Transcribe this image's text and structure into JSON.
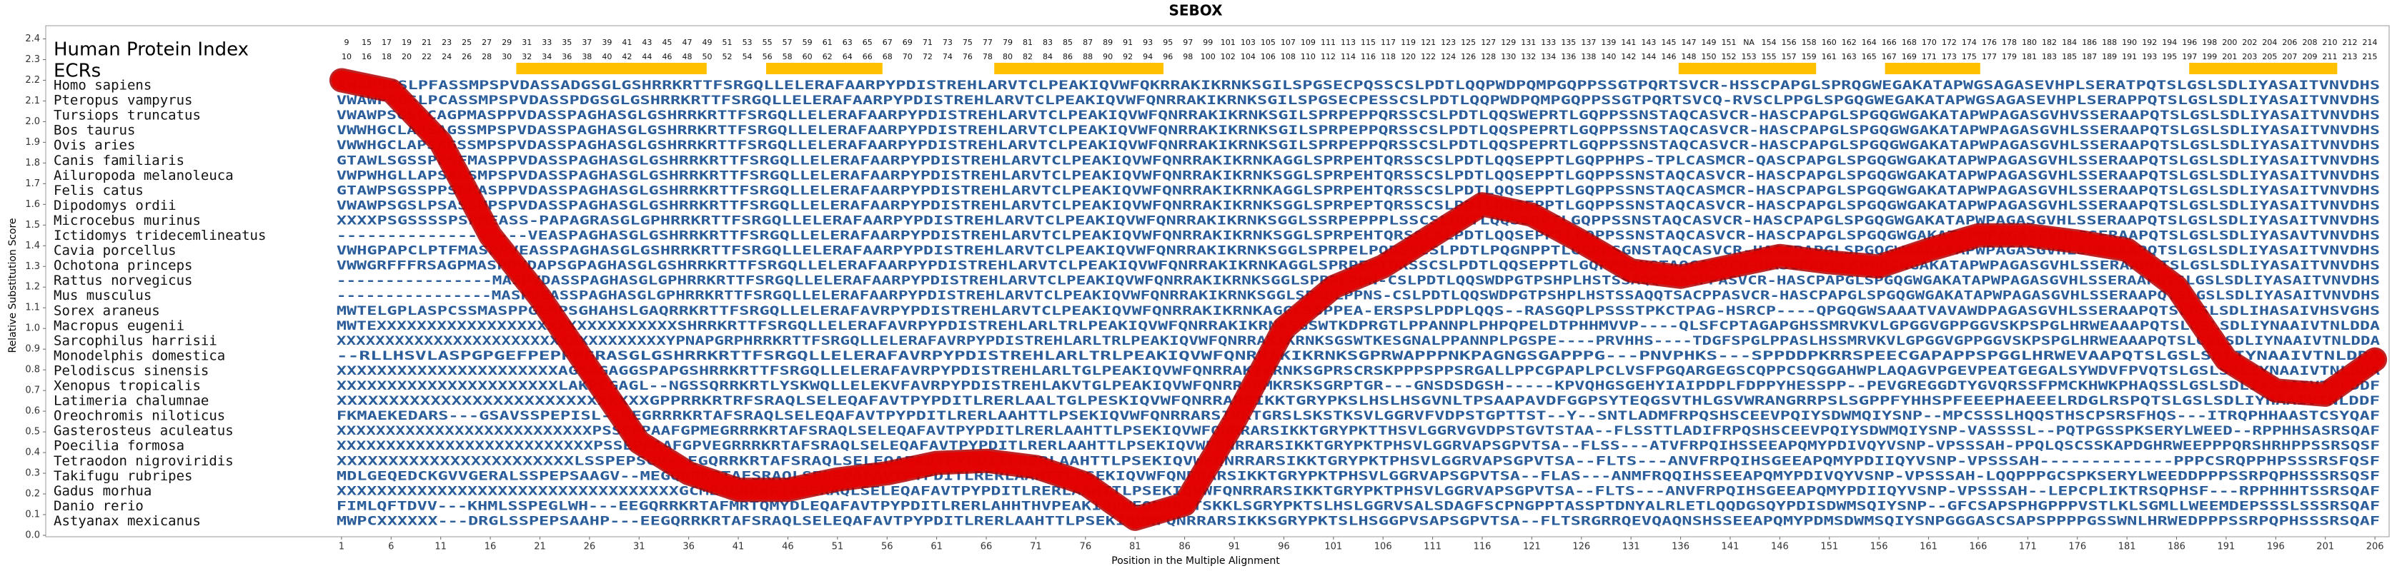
{
  "chart_data": {
    "type": "line",
    "title": "SEBOX",
    "xlabel": "Position in the Multiple Alignment",
    "ylabel": "Relative Substitution Score",
    "index_title": "Human Protein Index",
    "ecr_label": "ECRs",
    "color": "#e60000",
    "x": [
      1,
      6,
      11,
      16,
      21,
      26,
      31,
      36,
      41,
      46,
      51,
      56,
      61,
      66,
      71,
      76,
      81,
      86,
      91,
      96,
      101,
      106,
      111,
      116,
      121,
      126,
      131,
      136,
      141,
      146,
      151,
      156,
      161,
      166,
      171,
      176,
      181,
      186,
      191,
      196,
      201,
      206
    ],
    "values": [
      2.2,
      2.15,
      1.9,
      1.45,
      1.15,
      0.8,
      0.45,
      0.3,
      0.22,
      0.22,
      0.27,
      0.3,
      0.35,
      0.36,
      0.33,
      0.25,
      0.08,
      0.15,
      0.55,
      1.0,
      1.2,
      1.3,
      1.45,
      1.6,
      1.55,
      1.42,
      1.28,
      1.25,
      1.3,
      1.35,
      1.32,
      1.3,
      1.38,
      1.45,
      1.45,
      1.42,
      1.38,
      1.2,
      0.85,
      0.7,
      0.68,
      0.85
    ],
    "xlim": [
      0,
      207
    ],
    "ylim": [
      0,
      2.45
    ],
    "xticks": [
      1,
      6,
      11,
      16,
      21,
      26,
      31,
      36,
      41,
      46,
      51,
      56,
      61,
      66,
      71,
      76,
      81,
      86,
      91,
      96,
      101,
      106,
      111,
      116,
      121,
      126,
      131,
      136,
      141,
      146,
      151,
      156,
      161,
      166,
      171,
      176,
      181,
      186,
      191,
      196,
      201,
      206
    ],
    "yticks": [
      {
        "value": 0,
        "label": "0.0"
      },
      0.1,
      0.2,
      0.3,
      0.4,
      0.5,
      0.6,
      0.7,
      0.8,
      0.9,
      {
        "value": 1,
        "label": "1.0"
      },
      1.1,
      1.2,
      1.3,
      1.4,
      1.5,
      1.6,
      1.7,
      1.8,
      1.9,
      {
        "value": 2,
        "label": "2.0"
      },
      2.1,
      2.2,
      2.3,
      2.4
    ],
    "human_index_top": [
      9,
      15,
      17,
      19,
      21,
      23,
      25,
      27,
      29,
      31,
      33,
      35,
      37,
      39,
      41,
      43,
      45,
      47,
      49,
      51,
      53,
      55,
      57,
      59,
      61,
      63,
      65,
      67,
      69,
      71,
      73,
      75,
      77,
      79,
      81,
      83,
      85,
      87,
      89,
      91,
      93,
      95,
      97,
      99,
      101,
      103,
      105,
      107,
      109,
      111,
      113,
      115,
      117,
      119,
      121,
      123,
      125,
      127,
      129,
      131,
      133,
      135,
      137,
      139,
      141,
      143,
      145,
      147,
      149,
      151,
      "NA",
      154,
      156,
      158,
      160,
      162,
      164,
      166,
      168,
      170,
      172,
      174,
      176,
      178,
      180,
      182,
      184,
      186,
      188,
      190,
      192,
      194,
      196,
      198,
      200,
      202,
      204,
      206,
      208,
      210,
      212,
      214
    ],
    "human_index_bottom": [
      10,
      16,
      18,
      20,
      22,
      24,
      26,
      28,
      30,
      32,
      34,
      36,
      38,
      40,
      42,
      44,
      46,
      48,
      50,
      52,
      54,
      56,
      58,
      60,
      62,
      64,
      66,
      68,
      70,
      72,
      74,
      76,
      78,
      80,
      82,
      84,
      86,
      88,
      90,
      92,
      94,
      96,
      98,
      100,
      102,
      104,
      106,
      108,
      110,
      112,
      114,
      116,
      118,
      120,
      122,
      124,
      126,
      128,
      130,
      132,
      134,
      136,
      138,
      140,
      142,
      144,
      146,
      148,
      150,
      152,
      153,
      155,
      157,
      159,
      161,
      163,
      165,
      167,
      169,
      171,
      173,
      175,
      177,
      179,
      181,
      183,
      185,
      187,
      189,
      191,
      193,
      195,
      197,
      199,
      201,
      203,
      205,
      207,
      209,
      211,
      213,
      215
    ],
    "species": [
      "Homo sapiens",
      "Pteropus vampyrus",
      "Tursiops truncatus",
      "Bos taurus",
      "Ovis aries",
      "Canis familiaris",
      "Ailuropoda melanoleuca",
      "Felis catus",
      "Dipodomys ordii",
      "Microcebus murinus",
      "Ictidomys tridecemlineatus",
      "Cavia porcellus",
      "Ochotona princeps",
      "Rattus norvegicus",
      "Mus musculus",
      "Sorex araneus",
      "Macropus eugenii",
      "Sarcophilus harrisii",
      "Monodelphis domestica",
      "Pelodiscus sinensis",
      "Xenopus tropicalis",
      "Latimeria chalumnae",
      "Oreochromis niloticus",
      "Gasterosteus aculeatus",
      "Poecilia formosa",
      "Tetraodon nigroviridis",
      "Takifugu rubripes",
      "Gadus morhua",
      "Danio rerio",
      "Astyanax mexicanus"
    ],
    "sequences": [
      "AWAPSGSLPFASSMPSPVDASSADGSGLGSHRRKRTTFSRGQLLELERAFAARPYPDISTREHLARVTCLPEAKIQVWFQKRRAKIKRNKSGILSPGSECPQSSCSLPDTLQQPWDPQMPGQPPSSGTPQRTSVCR-HSSCPAPGLSPRQGWEGAKATAPWGSAGASEVHPLSERATPQTSLGSLSDLIYASAITVNVDHS",
      "VWAWPSGSLPCASSMPSPVDASSPDGSGLGSHRRKRTTFSRGQLLELERAFAARPYPDISTREHLARVTCLPEAKIQVWFQNRRAKIKRNKSGILSPGSECPESSCSLPDTLQQPWDPQMPGQPPSSGTPQRTSVCQ-RVSCLPPGLSPGQGWEGAKATAPWGSAGASEVHPLSERAPPQTSLGSLSDLIYASAITVNVDHS",
      "VWAWPSGSCCAGPMASPPVDASSPAGHASGLGSHRRKRTTFSRGQLLELERAFAARPYPDISTREHLARVTCLPEAKIQVWFQNRRAKIKRNKSGILSPRPEPPQRSSCSLPDTLQQSWEPRTLGQPPSSNSTAQCASVCR-HASCPAPGLSPGQGWGAKATAPWPAGASGVHVSSERAAPQTSLGSLSDLIYASAITVNVDHS",
      "VWWHGCLAPSAGSSMPSPVDASSPAGHASGLGSHRRKRTTFSRGQLLELERAFAARPYPDISTREHLARVTCLPEAKIQVWFQNRRAKIKRNKSGILSPRPEPPQRSSCSLPDTLQQSPEPRTLGQPPSSNSTAQCASVCR-HASCPAPGLSPGQGWGAKATAPWPAGASGVHLSSERAAPQTSLGSLSDLIYASAITVNVDHS",
      "VWWHGCLAPSAGSSMPSPVDASSPAGHASGLGSHRRKRTTFSRGQLLELERAFAARPYPDISTREHLARVTCLPEAKIQVWFQNRRAKIKRNKSGILSPRPEPPQRSSCSLPDTLQQSPEPRTLGQPPSSNSTAQCASVCR-HASCPAPGLSPGQGWGAKATAPWPAGASGVHLSSERAAPQTSLGSLSDLIYASAITVNVDHS",
      "GTAWLSGSSPPSFMASPPVDASSPAGHASGLGSHRRKRTTFSRGQLLELERAFAARPYPDISTREHLARVTCLPEAKIQVWFQNRRAKIKRNKAGGLSPRPEHTQRSSCSLPDTLQQSEPPTLGQPPHPS-TPLCASMCR-QASCPAPGLSPGQGWGAKATAPWPAGASGVHLSSERAAPQTSLGSLSDLIYASAITVNVDHS",
      "VWPWHGLLAPSASSMPSPVDASSPAGHASGLGSHRRKRTTFSRGQLLELERAFAARPYPDISTREHLARVTCLPEAKIQVWFQNRRAKIKRNKSGGLSPRPEHTQRSSCSLPDTLQQSEPPTLGQPPSSNSTAQCASVCR-HASCPAPGLSPGQGWGAKATAPWPAGASGVHLSSERAAPQTSLGSLSDLIYASAITVNVDHS",
      "GTAWPSGSSPPSFMASPPVDASSPAGHASGLGSHRRKRTTFSRGQLLELERAFAARPYPDISTREHLARVTCLPEAKIQVWFQNRRAKIKRNKAGGLSPRPEHTQRSSCSLPDTLQQSEPPTLGQPPSSNSTAQCASMCR-HASCPAPGLSPGQGWGAKATAPWPAGASGVHLSSERAAPQTSLGSLSDLIYASAITVNVDHS",
      "VWAWPSGSLPSASSMPSPVDASSPAGHASGLGSHRRKRTTFSRGQLLELERAFAARPYPDISTREHLARVTCLPEAKIQVWFQNRRAKIKRNKSGGLSPRPEPTQRSSCSLPDTLQQSEPPTLGQPPSSNSTAQCASVCR-HASCPAPGLSPGQGWGAKATAPWPAGASGVHLSSERAAPQTSLGSLSDLIYASAITVNVDHS",
      "XXXXPSGSSSSPSPMEASS-PAPAGRASGLGPHRRKRTTFSRGQLLELERAFAARPYPDISTREHLARVTCLPEAKIQVWFQNRRAKIKRNKSGGLSSRPEPPPLSSCSLPDTLQQSEPPTLGQPPSSNSTAQCASVCR-HASCPAPGLSPGQGWGAKATAPWPAGASGVHLSSERAAPQTSLGSLSDLIYASAITVNVDHS",
      "-------------------VEASPAGHASGLGSHRRKRTTFSRGQLLELERAFAARPYPDISTREHLARVTCLPEAKIQVWFQNRRAKIKRNKSGGLSPRPEHTQRSSCSLPDTLQQSEPPTLGQPPSSNSTAQCASVCR-HASCPAPGLSPGQGWGAKATAPWPAGASGVHLSSERAAPQTSLGSLSDLIYASAVTVNVDHS",
      "VWHGPAPCLPTFMASPPVEASSPAGHASGLGSHRRKRTTFSRGQLLELERAFAARPYPDISTREHLARVTCLPEAKIQVWFQNRRAKIKRNKSGGLSPRPELPQRSSCSLPDTLPQGNPPTLGQPPSGNSTAQCASVCR-HASCPAPGLSPGQGWGAKATAPWPAGASGVHLSSERAAPQTSLGSLSDLIYASAITVNVDHS",
      "VWWGRFFFRSAGPMASPPVDAPSGPAGHASGLGSHRRKRTTFSRGQLLELERAFAARPYPDISTREHLARVTCLPEAKIQVWFQNRRAKIKRNKAGGLSPRPEPTQRSSCSLPDTLQQSEPPTLGQPPSSNSTAQCASVCR-HASCPAPGLSPGQGWGAKATAPWPAGASGVHLSSERAAPQTSLGSLSDLIYASAITVNVDHS",
      "----------------MASPVDASSPAGHASGLGPHRRKRTTFSRGQLLELERAFAARPYPDISTREHLARVTCLPEAKIQVWFQNRRAKIKRNKSGGLSPRPLPNN-CSLPDTLQQSWDPGTPSHPLHSTSSAQQTSACPPASVCR-HASCPAPGLSPGQGWGAKATAPWPAGASGVHLSSERAAPQTSLGSLSDLIYASAITVNVDHS",
      "----------------MASPVEASSPAGHASGLGPHRRKRTTFSRGQLLELERAFAARPYPDISTREHLARVTCLPEAKIQVWFQNRRAKIKRNKSGGLSPRPLPPNS-CSLPDTLQQSWDPGTPSHPLHSTSSAQQTSACPPASVCR-HASCPAPGLSPGQGWGAKATAPWPAGASGVHLSSERAAPQTSLGSLSDLIYASAITVNVDHS",
      "MWTELGPLASPCSSMASPPGEMPSGHAHSLGAQRRKRTTFSRGQLLELERAFAVRPYPDISTREHLARVTCLPEAKIQVWFQNRRAKIKRNKAGGLSSPPEA-ERSPSLPDPLQQS--RASGQPLPSSSTPKCTPAG-HSRCP----QPGQGWSAAATVAVAWDPAGASGVHLSSERAAPQTSLGSLSDLIHASAIVHSVGHS",
      "MWTEXXXXXXXXXXXXXXXXXXXXXXXXXXXXXXSHRRKRTTFSRGQLLELERAFAVRPYPDISTREHLARLTRLPEAKIQVWFQNRRAKIKRNKSGSWTKDPRGTLPPANNPLPHPQPELDTPHHMVVP----QLSFCPTAGAPGHSSMRVKVLGPGGVGPPGGVSKPSPGLHRWEAAAPQTSLGSLSDLIYNAAIVTNLDDA",
      "XXXXXXXXXXXXXXXXXXXXXXXXXXXXXXXXXXYPNAPGRPHRRKRTTFSRGQLLELERAFAVRPYPDISTREHLARLTRLPEAKIQVWFQNRRAKIKRNKSGSWTKESGNALPPANNPLPGSPE----PRVHHS----TDGFSPGLPPASLHSSMRVKVLGPGGVGPPGGVSKPSPGLHRWEAAAPQTSLGSLSDLIYNAAIVTNLDDA",
      "--RLLHSVLASPGPGEFPEPPPGRASGLGSHRRKRTTFSRGQLLELERAFAVRPYPDISTREHLARLTRLPEAKIQVWFQNRRAKIKRNKSGPRWAPPPNKPAGNGSGAPPPG---PNVPHKS---SPPDDPKRRSPEECGAPAPPSPGGLHRWEVAAPQTSLGSLSDLIYNAAIVTNLDDA",
      "XXXXXXXXXXXXXXXXXXXXXXAGSRGAGGSPAPGSHRRKRTTFSRGQLLELERAFAVRPYPDISTREHLARLTGLPEAKIQVWFQNRRAKIKRNKSGPRSCRSKPPPSPPSRGALLPPCGPAPLPCLVSFPGQARGEGSCQPPCSQGGAHWPLAQAGVPGEVPEATGEGALSYWDVFPVQTSLGSLSDLIYNAAIVTNLDDA",
      "XXXXXXXXXXXXXXXXXXXXXXLAKPEGAGL--NGSSQRRKRTLYSKWQLLELEKVFAVRPYPDISTREHLAKVTGLPEAKIQVWFQNRRARMKRSKSGRPTGR---GNSDSDGSH-----KPVQHGSGEHYIAIPDPLFDPPYHESSPP--PEVGREGGDTYGVQRSSFPMCKHWKPHAQSSLGSLSDLIYSAAIVTNLDDF",
      "XXXXXXXXXXXXXXXXXXXXXXXXXXXXXXGPPRRKRTRFSRAQLSELEQAFAVTPYPDITLRERLAALTGLPESKIQVWFQNRRARSIKKTGRYPKSLHSLHSGVNLTPSAAPAVDFGGPSYTEQGSVTHLGSVWRANGRRPSLSGPPFYHHSPFEEEPHAEEELRDGLRSPQTSLGSLSDLIYHAAIVTNLDDF",
      "FKMAEKEDARS---GSAVSSPEPISL--MEGRRRKRTAFSRAQLSELEQAFAVTPYPDITLRERLAAHTTLPSEKIQVWFQNRRARSIKKTGRSLSKSTKSVLGGRVFVDPSTGPTTST--Y--SNTLADMFRPQSHSCEEVPQIYSDWMQIYSNP--MPCSSSLHQQSTHSCPSRSFHQS---ITRQPHHAASTCSYQAF",
      "XXXXXXXXXXXXXXXXXXXXXXXXXXPSSEPPAAFGPMEGRRRKRTAFSRAQLSELEQAFAVTPYPDITLRERLAAHTTLPSEKIQVWFQNRRARSIKKTGRYPKTTHSVLGGRVGVDPSTGVTSTAA--FLSSTTLADIFRPQSHSCEEVPQIYSDWMQIYSNP-VASSSSL--PQTPGSSPKSERYLWEED--RPPHHSASRSQAF",
      "XXXXXXXXXXXXXXXXXXXXXXXXXXPSSEPPAAFGPVEGRRRKRTAFSRAQLSELEQAFAVTPYPDITLRERLAAHTTLPSEKIQVWFQNRRARSIKKTGRYPKTPHSVLGGRVAPSGPVTSA--FLSS---ATVFRPQIHSSEEAPQMYPDIVQYVSNP-VPSSSAH-PPQLQSCSSKAPDGHRWEEPPPQRSHRHPPSSRSQSF",
      "XXXXXXXXXXXXXXXXXXXXXXXLSSPEPSGV--EGQRRKRTAFSRAQLSELEQAFAVTPYPDITLRERLAAHTTLPSEKIQVWFQNRRARSIKKTGRYPKTPHSVLGGRVAPSGPVTSA--FLTS---ANVFRPQIHSGEEAPQMYPDIIQYVSNP-VPSSSAH-------------PPPCSRQPPHPSSSRSFQSF",
      "MDLGEQEDCKGVVGERALSSPEPSAAGV--MEGQRRKRTAFSRAQLSELEQAFAVTPYPDITLRERLAAHTTLPSEKIQVWFQNRRARSIKKTGRYPKTPHSVLGGRVAPSGPVTSA--FLAS---ANMFRQQIHSSEEAPQMYPDIVQYVSNP-VPSSSAH-LQQPPPGCSPKSERYLWEEDDPPPSSRPQPHSSSRSQSF",
      "XXXXXXXXXXXXXXXXXXXXXXXXXXXXXXXXXXGCMEGQRRKRTAFSRAQLSELEQAFAVTPYPDITLRERLAAHTTLPSEKIQVWFQNRRARSIKKTGRYPKTPHSVLGGRVAPSGPVTSA--FLTS---ANVFRPQIHSGEEAPQMYPDIIQYVSNP-VPSSSAH--LEPCPLIKTRSQPHSF---RPPHHHTSSRSQAF",
      "FIMLQFTDVV---KHMLSSPEGLWH---EEGQRRKRTAFMRTQMYDLEQAFAVTPYPDITLRERLAHHTHVPEAKIQVWFQNRRATSKKLSGRYPKTSLHSLGGRVSALSDAGFSCPNGPPTASSPTDNYALRLETLQQDGSQYPDISDWMSQIYSNP--GFCSAPSPHGPPPVSTLKLSGMLLWEEMDEPSSSLSSSRSQAF",
      "MWPCXXXXXX---DRGLSSPEPSAAHP---EEGQRRKRTAFSRAQLSELEQAFAVTPYPDITLRERLAAHTTLPSEKIQVWFQNRRARSIKKSGRYPKTSLHSGGPVSAPSGPVTSA--FLTSRGRRQEVQAQNSHSSEEAPQMYPDMSDWMSQIYSNPGGGASCSAPSPPPPGSSWNLHRWEDPPPSSRPQPHSSSRSQAF"
    ]
  }
}
